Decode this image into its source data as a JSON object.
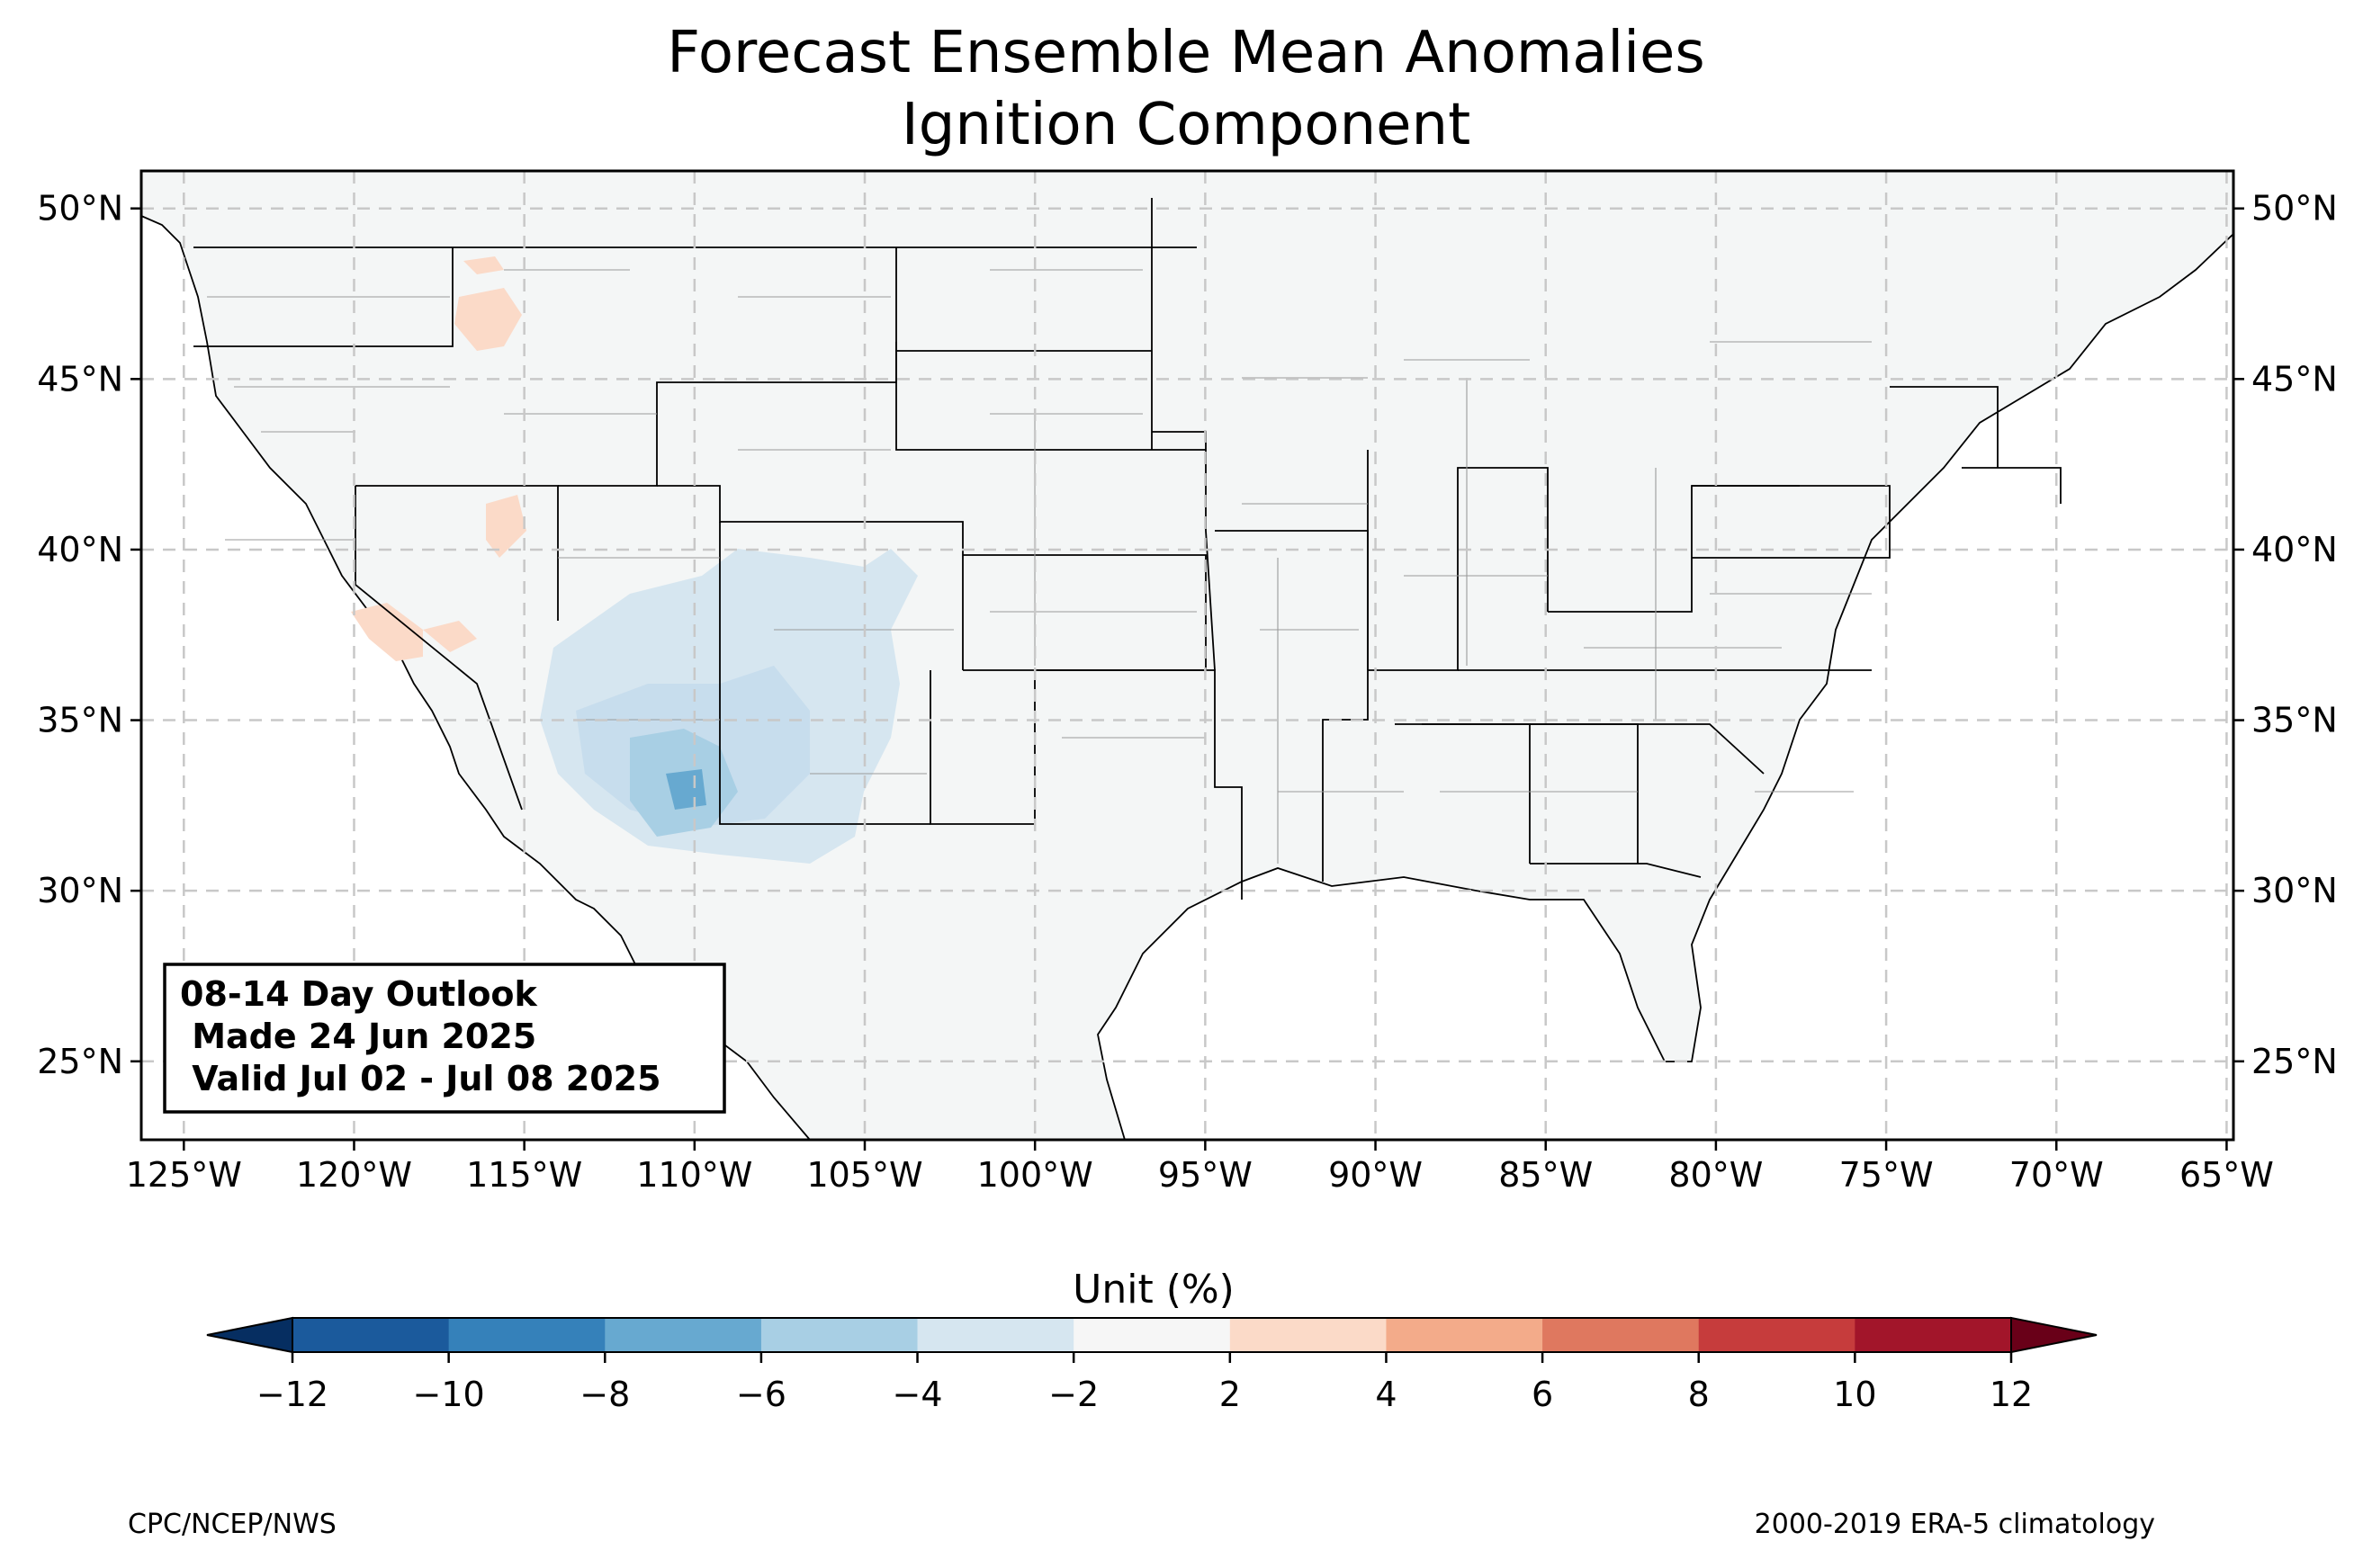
{
  "title_line1": "Forecast Ensemble Mean Anomalies",
  "title_line2": "Ignition Component",
  "outlook": {
    "line1": "08-14 Day Outlook",
    "line2": " Made 24 Jun 2025",
    "line3": " Valid Jul 02 - Jul 08 2025"
  },
  "lat_ticks": [
    "50°N",
    "45°N",
    "40°N",
    "35°N",
    "30°N",
    "25°N"
  ],
  "lat_values": [
    50,
    45,
    40,
    35,
    30,
    25
  ],
  "lon_ticks": [
    "125°W",
    "120°W",
    "115°W",
    "110°W",
    "105°W",
    "100°W",
    "95°W",
    "90°W",
    "85°W",
    "80°W",
    "75°W",
    "70°W",
    "65°W"
  ],
  "lon_values": [
    -125,
    -120,
    -115,
    -110,
    -105,
    -100,
    -95,
    -90,
    -85,
    -80,
    -75,
    -70,
    -65
  ],
  "map_extent": {
    "lon_min": -126.25,
    "lon_max": -64.8,
    "lat_min": 22.7,
    "lat_max": 51.1
  },
  "colorbar": {
    "label": "Unit (%)",
    "ticks": [
      "−12",
      "−10",
      "−8",
      "−6",
      "−4",
      "−2",
      "2",
      "4",
      "6",
      "8",
      "10",
      "12"
    ],
    "bins": [
      -12,
      -10,
      -8,
      -6,
      -4,
      -2,
      2,
      4,
      6,
      8,
      10,
      12
    ],
    "colors": [
      "#1b5a9c",
      "#3581ba",
      "#67a9d0",
      "#a8cfe4",
      "#d6e6f0",
      "#f6f6f6",
      "#fbdac8",
      "#f3ab8a",
      "#df785f",
      "#c63c3c",
      "#a2152a"
    ],
    "under_color": "#062e61",
    "over_color": "#690018"
  },
  "credit_left": "CPC/NCEP/NWS",
  "credit_right": "2000-2019 ERA-5 climatology"
}
